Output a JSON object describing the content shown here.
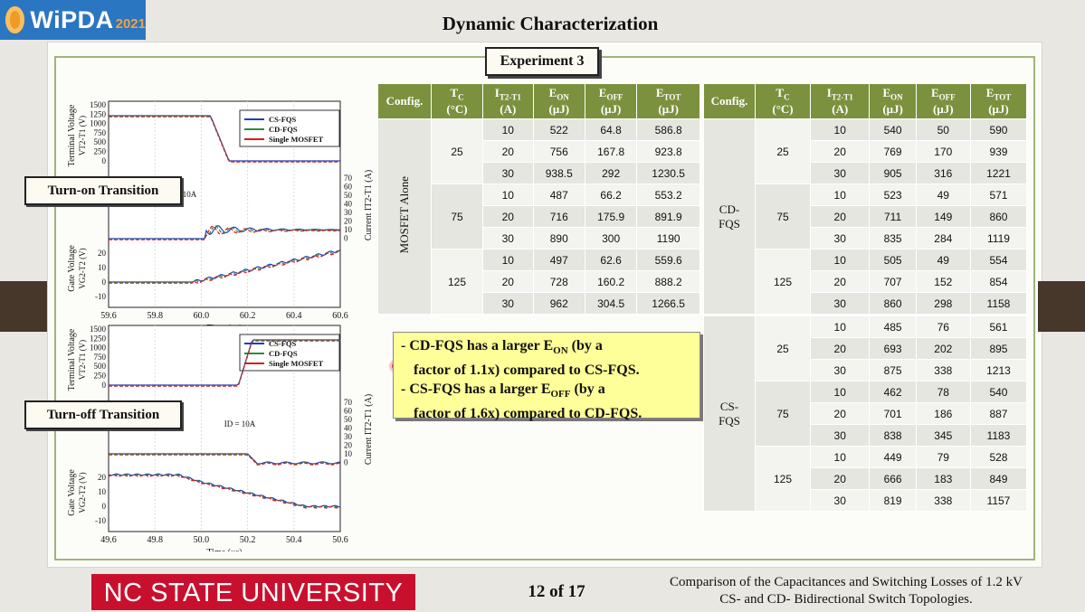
{
  "header": {
    "logo_text": "WiPDA",
    "logo_year": "2021",
    "title": "Dynamic Characterization",
    "experiment": "Experiment 3"
  },
  "plots": {
    "turn_on_label": "Turn-on Transition",
    "turn_off_label": "Turn-off Transition",
    "legend": [
      "CS-FQS",
      "CD-FQS",
      "Single MOSFET"
    ],
    "series_colors": [
      "#1f3fbf",
      "#2e8b3c",
      "#d02020"
    ],
    "y_left_top": "Terminal Voltage",
    "y_left_top_sub": "V",
    "y_left_top_subscript": "T2-T1",
    "y_left_top_unit": " (V)",
    "y_left_bottom_on": "Gate Voltage",
    "y_left_bottom_sub": "V",
    "y_left_bottom_subscript": "G2-T2",
    "y_left_bottom_unit": " (V)",
    "y_right": "Current I",
    "y_right_subscript": "T2-T1",
    "y_right_unit": " (A)",
    "xlabel": "Time (μs)",
    "id_annot": "I",
    "id_annot_sub": "D",
    "id_annot_val": " = 10A",
    "voltage_ticks": [
      "1500",
      "1250",
      "1000",
      "750",
      "500",
      "250",
      "0"
    ],
    "current_ticks": [
      "70",
      "60",
      "50",
      "40",
      "30",
      "20",
      "10",
      "0"
    ],
    "gate_ticks": [
      "20",
      "10",
      "0",
      "-10"
    ],
    "turn_on_x_ticks": [
      "59.6",
      "59.8",
      "60.0",
      "60.2",
      "60.4",
      "60.6"
    ],
    "turn_off_x_ticks": [
      "49.6",
      "49.8",
      "50.0",
      "50.2",
      "50.4",
      "50.6"
    ]
  },
  "table_left": {
    "headers": [
      {
        "main": "Config.",
        "sub": ""
      },
      {
        "main": "T",
        "sub": "C",
        "unit": "(°C)"
      },
      {
        "main": "I",
        "sub": "T2-T1",
        "unit": "(A)"
      },
      {
        "main": "E",
        "sub": "ON",
        "unit": "(μJ)"
      },
      {
        "main": "E",
        "sub": "OFF",
        "unit": "(μJ)"
      },
      {
        "main": "E",
        "sub": "TOT",
        "unit": "(μJ)"
      }
    ],
    "config": "MOSFET Alone",
    "groups": [
      {
        "tc": "25",
        "rows": [
          [
            "10",
            "522",
            "64.8",
            "586.8"
          ],
          [
            "20",
            "756",
            "167.8",
            "923.8"
          ],
          [
            "30",
            "938.5",
            "292",
            "1230.5"
          ]
        ]
      },
      {
        "tc": "75",
        "rows": [
          [
            "10",
            "487",
            "66.2",
            "553.2"
          ],
          [
            "20",
            "716",
            "175.9",
            "891.9"
          ],
          [
            "30",
            "890",
            "300",
            "1190"
          ]
        ]
      },
      {
        "tc": "125",
        "rows": [
          [
            "10",
            "497",
            "62.6",
            "559.6"
          ],
          [
            "20",
            "728",
            "160.2",
            "888.2"
          ],
          [
            "30",
            "962",
            "304.5",
            "1266.5"
          ]
        ]
      }
    ]
  },
  "table_right": {
    "configs": [
      {
        "name": "CD-\nFQS",
        "groups": [
          {
            "tc": "25",
            "rows": [
              [
                "10",
                "540",
                "50",
                "590"
              ],
              [
                "20",
                "769",
                "170",
                "939"
              ],
              [
                "30",
                "905",
                "316",
                "1221"
              ]
            ]
          },
          {
            "tc": "75",
            "rows": [
              [
                "10",
                "523",
                "49",
                "571"
              ],
              [
                "20",
                "711",
                "149",
                "860"
              ],
              [
                "30",
                "835",
                "284",
                "1119"
              ]
            ]
          },
          {
            "tc": "125",
            "rows": [
              [
                "10",
                "505",
                "49",
                "554"
              ],
              [
                "20",
                "707",
                "152",
                "854"
              ],
              [
                "30",
                "860",
                "298",
                "1158"
              ]
            ]
          }
        ]
      },
      {
        "name": "CS-\nFQS",
        "groups": [
          {
            "tc": "25",
            "rows": [
              [
                "10",
                "485",
                "76",
                "561"
              ],
              [
                "20",
                "693",
                "202",
                "895"
              ],
              [
                "30",
                "875",
                "338",
                "1213"
              ]
            ]
          },
          {
            "tc": "75",
            "rows": [
              [
                "10",
                "462",
                "78",
                "540"
              ],
              [
                "20",
                "701",
                "186",
                "887"
              ],
              [
                "30",
                "838",
                "345",
                "1183"
              ]
            ]
          },
          {
            "tc": "125",
            "rows": [
              [
                "10",
                "449",
                "79",
                "528"
              ],
              [
                "20",
                "666",
                "183",
                "849"
              ],
              [
                "30",
                "819",
                "338",
                "1157"
              ]
            ]
          }
        ]
      }
    ]
  },
  "note": {
    "line1a": "- CD-FQS has a larger E",
    "line1sub": "ON",
    "line1b": " (by a",
    "line2": "factor of 1.1x) compared to CS-FQS.",
    "line3a": "- CS-FQS has a larger E",
    "line3sub": "OFF",
    "line3b": " (by a",
    "line4": "factor of 1.6x) compared to CD-FQS."
  },
  "footer": {
    "university": "NC STATE UNIVERSITY",
    "page": "12 of 17",
    "caption_line1": "Comparison of the Capacitances and Switching Losses of 1.2 kV",
    "caption_line2": "CS- and CD- Bidirectional Switch Topologies."
  }
}
